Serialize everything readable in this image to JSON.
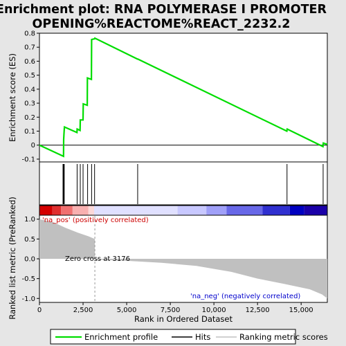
{
  "title_line1": "Enrichment plot: RNA POLYMERASE I PROMOTER",
  "title_line2": "OPENING%REACTOME%REACT_2232.2",
  "colors": {
    "enrichment": "#00dd00",
    "hits": "#000000",
    "metric_fill": "#c0c0c0",
    "pos_label": "#cc0000",
    "neg_label": "#0000cc",
    "zero_line": "#999999"
  },
  "chart_data": {
    "type": "line",
    "n_genes": 16500,
    "panels": {
      "enrichment": {
        "ylabel": "Enrichment score (ES)",
        "ylim": [
          -0.12,
          0.8
        ],
        "yticks": [
          -0.1,
          0.0,
          0.1,
          0.2,
          0.3,
          0.4,
          0.5,
          0.6,
          0.7,
          0.8
        ],
        "ytick_labels": [
          "-0.1",
          "0",
          "0.1",
          "0.2",
          "0.3",
          "0.4",
          "0.5",
          "0.6",
          "0.7",
          "0.8"
        ],
        "points": [
          [
            0,
            0.0
          ],
          [
            1380,
            -0.08
          ],
          [
            1390,
            0.04
          ],
          [
            1410,
            0.085
          ],
          [
            1430,
            0.13
          ],
          [
            2150,
            0.09
          ],
          [
            2160,
            0.115
          ],
          [
            2330,
            0.105
          ],
          [
            2340,
            0.18
          ],
          [
            2500,
            0.18
          ],
          [
            2510,
            0.295
          ],
          [
            2740,
            0.285
          ],
          [
            2750,
            0.48
          ],
          [
            2980,
            0.47
          ],
          [
            2990,
            0.755
          ],
          [
            3160,
            0.76
          ],
          [
            3176,
            0.765
          ],
          [
            5620,
            0.615
          ],
          [
            5640,
            0.615
          ],
          [
            14180,
            0.1
          ],
          [
            14200,
            0.115
          ],
          [
            16250,
            -0.01
          ],
          [
            16270,
            0.015
          ],
          [
            16500,
            0.005
          ]
        ]
      },
      "hits": {
        "positions": [
          1350,
          1390,
          1420,
          2160,
          2340,
          2500,
          2760,
          2990,
          3160,
          5630,
          14190,
          16260
        ]
      },
      "metric": {
        "ylabel": "Ranked list metric (PreRanked)",
        "xlabel": "Rank in Ordered Dataset",
        "ylim": [
          -1.1,
          1.1
        ],
        "yticks": [
          1.0,
          0.5,
          0.0,
          -0.5,
          -1.0
        ],
        "ytick_labels": [
          "1.0",
          "0.5",
          "0.0",
          "-0.5",
          "-1.0"
        ],
        "xticks": [
          0,
          2500,
          5000,
          7500,
          10000,
          12500,
          15000
        ],
        "xtick_labels": [
          "0",
          "2,500",
          "5,000",
          "7,500",
          "10,000",
          "12,500",
          "15,000"
        ],
        "curve": [
          [
            0,
            1.0
          ],
          [
            300,
            0.97
          ],
          [
            800,
            0.92
          ],
          [
            1500,
            0.78
          ],
          [
            2200,
            0.66
          ],
          [
            2800,
            0.57
          ],
          [
            3176,
            0.5
          ],
          [
            3180,
            0.0
          ],
          [
            3200,
            -0.02
          ],
          [
            5000,
            -0.05
          ],
          [
            7000,
            -0.1
          ],
          [
            9000,
            -0.18
          ],
          [
            11000,
            -0.33
          ],
          [
            12500,
            -0.5
          ],
          [
            14000,
            -0.63
          ],
          [
            15500,
            -0.77
          ],
          [
            16200,
            -0.9
          ],
          [
            16500,
            -1.0
          ]
        ],
        "zero_cross": 3176
      }
    },
    "annotations": {
      "pos": "'na_pos' (positively correlated)",
      "neg": "'na_neg' (negatively correlated)",
      "zero_cross": "Zero cross at 3176"
    },
    "legend": [
      "Enrichment profile",
      "Hits",
      "Ranking metric scores"
    ],
    "gradient_colors": [
      "#d40000",
      "#e03030",
      "#f07070",
      "#f8b0b0",
      "#fcd8d8",
      "#e0e0ff",
      "#c8c8ff",
      "#a0a0f8",
      "#6868e8",
      "#3030d0",
      "#0000c0",
      "#1a00a8"
    ]
  }
}
